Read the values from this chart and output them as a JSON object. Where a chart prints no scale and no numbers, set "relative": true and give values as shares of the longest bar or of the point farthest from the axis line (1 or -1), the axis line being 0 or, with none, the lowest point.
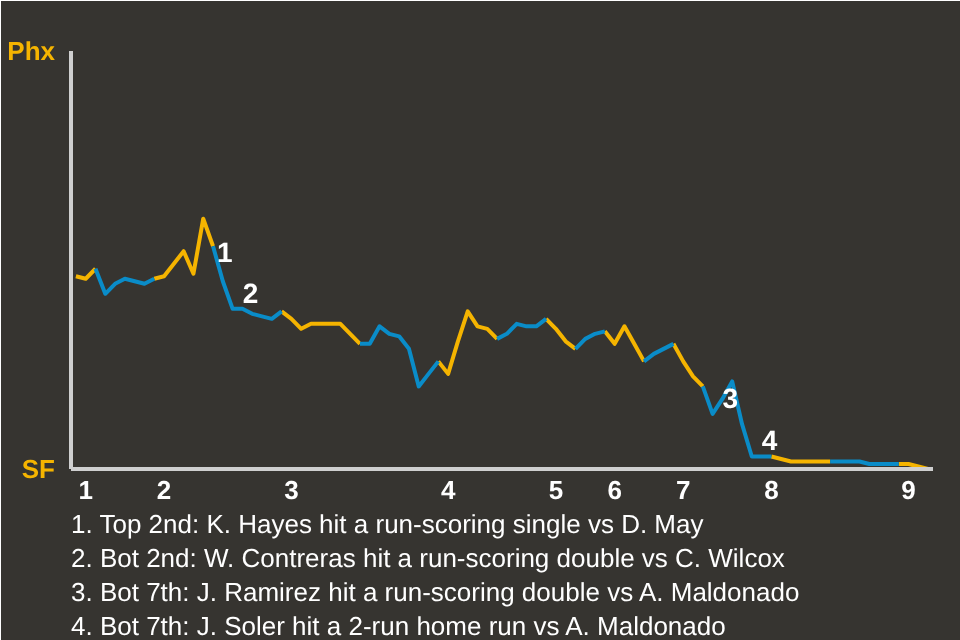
{
  "chart_data": {
    "type": "line",
    "relative": true,
    "categories": [
      null,
      "1",
      null,
      null,
      null,
      null,
      null,
      null,
      null,
      "2",
      null,
      null,
      null,
      null,
      null,
      null,
      null,
      null,
      null,
      null,
      null,
      null,
      "3",
      null,
      null,
      null,
      null,
      null,
      null,
      null,
      null,
      null,
      null,
      null,
      null,
      null,
      null,
      null,
      "4",
      null,
      null,
      null,
      null,
      null,
      null,
      null,
      null,
      null,
      null,
      "5",
      null,
      null,
      null,
      null,
      null,
      "6",
      null,
      null,
      null,
      null,
      null,
      null,
      "7",
      null,
      null,
      null,
      null,
      null,
      null,
      null,
      null,
      "8",
      null,
      null,
      null,
      null,
      null,
      null,
      null,
      null,
      null,
      null,
      null,
      null,
      null,
      "9",
      null,
      null
    ],
    "series": [
      {
        "color": "#f5b400",
        "values": [
          0.77,
          0.76,
          0.8,
          null,
          null,
          null,
          null,
          null,
          0.76,
          0.77,
          0.82,
          0.87,
          0.78,
          1,
          0.89,
          null,
          null,
          null,
          null,
          null,
          null,
          0.63,
          0.6,
          0.56,
          0.58,
          0.58,
          0.58,
          0.58,
          0.54,
          0.5,
          null,
          null,
          null,
          null,
          null,
          null,
          null,
          0.43,
          0.38,
          0.51,
          0.63,
          0.57,
          0.56,
          0.52,
          null,
          null,
          null,
          null,
          0.6,
          0.56,
          0.51,
          0.48,
          null,
          null,
          0.55,
          0.5,
          0.57,
          0.5,
          0.43,
          null,
          null,
          0.5,
          0.43,
          0.37,
          0.33,
          null,
          null,
          null,
          null,
          null,
          null,
          0.05,
          0.04,
          0.03,
          0.03,
          0.03,
          0.03,
          0.03,
          null,
          null,
          null,
          null,
          null,
          null,
          0.02,
          0.02,
          0.01,
          0
        ]
      },
      {
        "color": "#0a8cc8",
        "values": [
          null,
          null,
          0.8,
          0.7,
          0.74,
          0.76,
          0.75,
          0.74,
          0.76,
          null,
          null,
          null,
          null,
          null,
          0.89,
          0.75,
          0.64,
          0.64,
          0.62,
          0.61,
          0.6,
          0.63,
          null,
          null,
          null,
          null,
          null,
          null,
          null,
          0.5,
          0.5,
          0.57,
          0.54,
          0.53,
          0.48,
          0.33,
          0.38,
          0.43,
          null,
          null,
          null,
          null,
          null,
          0.52,
          0.54,
          0.58,
          0.57,
          0.57,
          0.6,
          null,
          null,
          0.48,
          0.52,
          0.54,
          0.55,
          null,
          null,
          null,
          0.43,
          0.46,
          0.48,
          0.5,
          null,
          null,
          0.33,
          0.22,
          0.28,
          0.35,
          0.18,
          0.05,
          0.05,
          0.05,
          null,
          null,
          null,
          null,
          null,
          0.03,
          0.03,
          0.03,
          0.03,
          0.02,
          0.02,
          0.02,
          0.02,
          null,
          null,
          null
        ]
      }
    ],
    "line_style": "solid",
    "annotations": [
      "Phx",
      "SF",
      {
        "text": "1",
        "y": 0.89
      },
      {
        "text": "2",
        "y": 0.64
      },
      {
        "text": "3",
        "y": 0.22
      },
      {
        "text": "4",
        "y": 0.05
      },
      "1. Top 2nd: K. Hayes hit a run-scoring single vs D. May",
      "2. Bot 2nd: W. Contreras hit a run-scoring double vs C. Wilcox",
      "3. Bot 7th: J. Ramirez hit a run-scoring double vs A. Maldonado",
      "4. Bot 7th: J. Soler hit a 2-run home run vs A. Maldonado"
    ]
  }
}
